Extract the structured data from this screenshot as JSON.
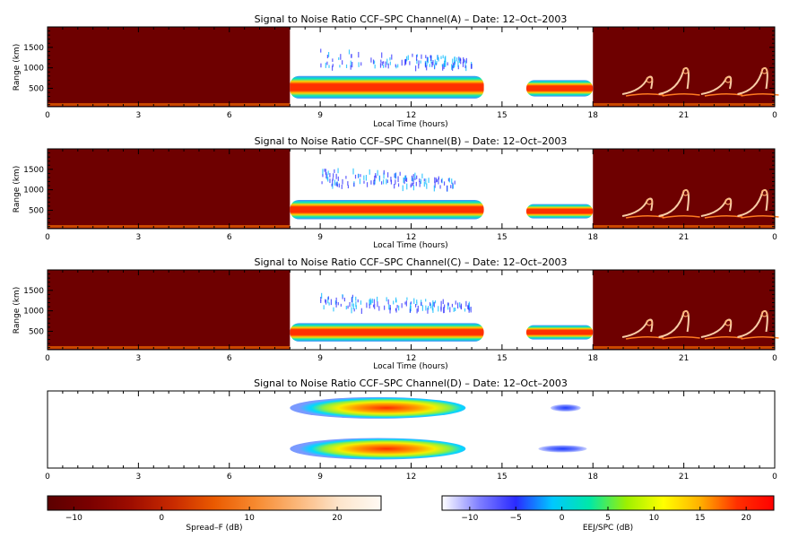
{
  "chart_data": [
    {
      "type": "heatmap",
      "title": "Signal to Noise Ratio CCF–SPC Channel(A) – Date: 12–Oct–2003",
      "xlabel": "Local Time (hours)",
      "ylabel": "Range (km)",
      "xlim": [
        0,
        24
      ],
      "ylim": [
        50,
        2000
      ],
      "x_ticks": [
        "0",
        "3",
        "6",
        "9",
        "12",
        "15",
        "18",
        "21",
        "0"
      ],
      "y_ticks": [
        {
          "value": 500,
          "label": "500"
        },
        {
          "value": 1000,
          "label": "1000"
        },
        {
          "value": 1500,
          "label": "1500"
        }
      ],
      "night_blocks": [
        [
          0,
          8
        ],
        [
          18,
          24
        ]
      ],
      "echo_bands": [
        {
          "t_start": 8.0,
          "t_end": 14.4,
          "range_low": 250,
          "range_high": 800,
          "snr_db": 20
        },
        {
          "t_start": 15.8,
          "t_end": 18.0,
          "range_low": 300,
          "range_high": 700,
          "snr_db": 18
        }
      ],
      "scatter": [
        {
          "t_start": 9.0,
          "t_end": 14.0,
          "range_low": 1050,
          "range_high": 1500,
          "snr_db": -5
        }
      ],
      "spread_f_plumes": [
        19.8,
        21.0,
        22.4,
        23.6
      ]
    },
    {
      "type": "heatmap",
      "title": "Signal to Noise Ratio CCF–SPC Channel(B) – Date: 12–Oct–2003",
      "xlabel": "Local Time (hours)",
      "ylabel": "Range (km)",
      "xlim": [
        0,
        24
      ],
      "ylim": [
        50,
        2000
      ],
      "x_ticks": [
        "0",
        "3",
        "6",
        "9",
        "12",
        "15",
        "18",
        "21",
        "0"
      ],
      "y_ticks": [
        {
          "value": 500,
          "label": "500"
        },
        {
          "value": 1000,
          "label": "1000"
        },
        {
          "value": 1500,
          "label": "1500"
        }
      ],
      "night_blocks": [
        [
          0,
          8
        ],
        [
          18,
          24
        ]
      ],
      "echo_bands": [
        {
          "t_start": 8.0,
          "t_end": 14.4,
          "range_low": 280,
          "range_high": 750,
          "snr_db": 20
        },
        {
          "t_start": 15.8,
          "t_end": 18.0,
          "range_low": 300,
          "range_high": 650,
          "snr_db": 18
        }
      ],
      "scatter": [
        {
          "t_start": 9.0,
          "t_end": 13.5,
          "range_low": 1100,
          "range_high": 1600,
          "snr_db": -5
        }
      ],
      "spread_f_plumes": [
        19.8,
        21.0,
        22.4,
        23.6
      ]
    },
    {
      "type": "heatmap",
      "title": "Signal to Noise Ratio CCF–SPC Channel(C) – Date: 12–Oct–2003",
      "xlabel": "Local Time (hours)",
      "ylabel": "Range (km)",
      "xlim": [
        0,
        24
      ],
      "ylim": [
        50,
        2000
      ],
      "x_ticks": [
        "0",
        "3",
        "6",
        "9",
        "12",
        "15",
        "18",
        "21",
        "0"
      ],
      "y_ticks": [
        {
          "value": 500,
          "label": "500"
        },
        {
          "value": 1000,
          "label": "1000"
        },
        {
          "value": 1500,
          "label": "1500"
        }
      ],
      "night_blocks": [
        [
          0,
          8
        ],
        [
          18,
          24
        ]
      ],
      "echo_bands": [
        {
          "t_start": 8.0,
          "t_end": 14.4,
          "range_low": 250,
          "range_high": 700,
          "snr_db": 20
        },
        {
          "t_start": 15.8,
          "t_end": 18.0,
          "range_low": 300,
          "range_high": 650,
          "snr_db": 18
        }
      ],
      "scatter": [
        {
          "t_start": 9.0,
          "t_end": 14.0,
          "range_low": 1050,
          "range_high": 1450,
          "snr_db": -5
        }
      ],
      "spread_f_plumes": [
        19.8,
        21.0,
        22.4,
        23.6
      ]
    },
    {
      "type": "heatmap",
      "title": "Signal to Noise Ratio CCF–SPC Channel(D) – Date: 12–Oct–2003",
      "xlabel": "",
      "ylabel": "",
      "xlim": [
        0,
        24
      ],
      "x_ticks": [
        "0",
        "3",
        "6",
        "9",
        "12",
        "15",
        "18",
        "21",
        "0"
      ],
      "y_ticks": [],
      "night_blocks": [],
      "blobs": [
        {
          "t_start": 8.0,
          "t_end": 13.8,
          "level": 0.78,
          "snr_db": 20
        },
        {
          "t_start": 8.0,
          "t_end": 13.8,
          "level": 0.25,
          "snr_db": 20
        },
        {
          "t_start": 16.6,
          "t_end": 17.6,
          "level": 0.78,
          "snr_db": -5
        },
        {
          "t_start": 16.2,
          "t_end": 17.8,
          "level": 0.25,
          "snr_db": -5
        }
      ]
    }
  ],
  "colorbars": [
    {
      "label": "Spread–F (dB)",
      "range": [
        -13,
        25
      ],
      "ticks": [
        {
          "value": -10,
          "label": "−10"
        },
        {
          "value": 0,
          "label": "0"
        },
        {
          "value": 10,
          "label": "10"
        },
        {
          "value": 20,
          "label": "20"
        }
      ],
      "stops": [
        "#5c0000",
        "#7a0000",
        "#9e0d00",
        "#c82a00",
        "#ea5a00",
        "#f78a30",
        "#fbb77a",
        "#fde5cc",
        "#fffaf4"
      ]
    },
    {
      "label": "EEJ/SPC (dB)",
      "range": [
        -13,
        23
      ],
      "ticks": [
        {
          "value": -10,
          "label": "−10"
        },
        {
          "value": -5,
          "label": "−5"
        },
        {
          "value": 0,
          "label": "0"
        },
        {
          "value": 5,
          "label": "5"
        },
        {
          "value": 10,
          "label": "10"
        },
        {
          "value": 15,
          "label": "15"
        },
        {
          "value": 20,
          "label": "20"
        }
      ],
      "stops": [
        "#ffffff",
        "#8080ff",
        "#2a2aff",
        "#00c8ff",
        "#00e8a8",
        "#9df000",
        "#ffff00",
        "#ffb000",
        "#ff3000",
        "#ff0000"
      ]
    }
  ],
  "colors": {
    "night_fill": "#6e0000",
    "axis": "#000000",
    "background": "#ffffff"
  }
}
